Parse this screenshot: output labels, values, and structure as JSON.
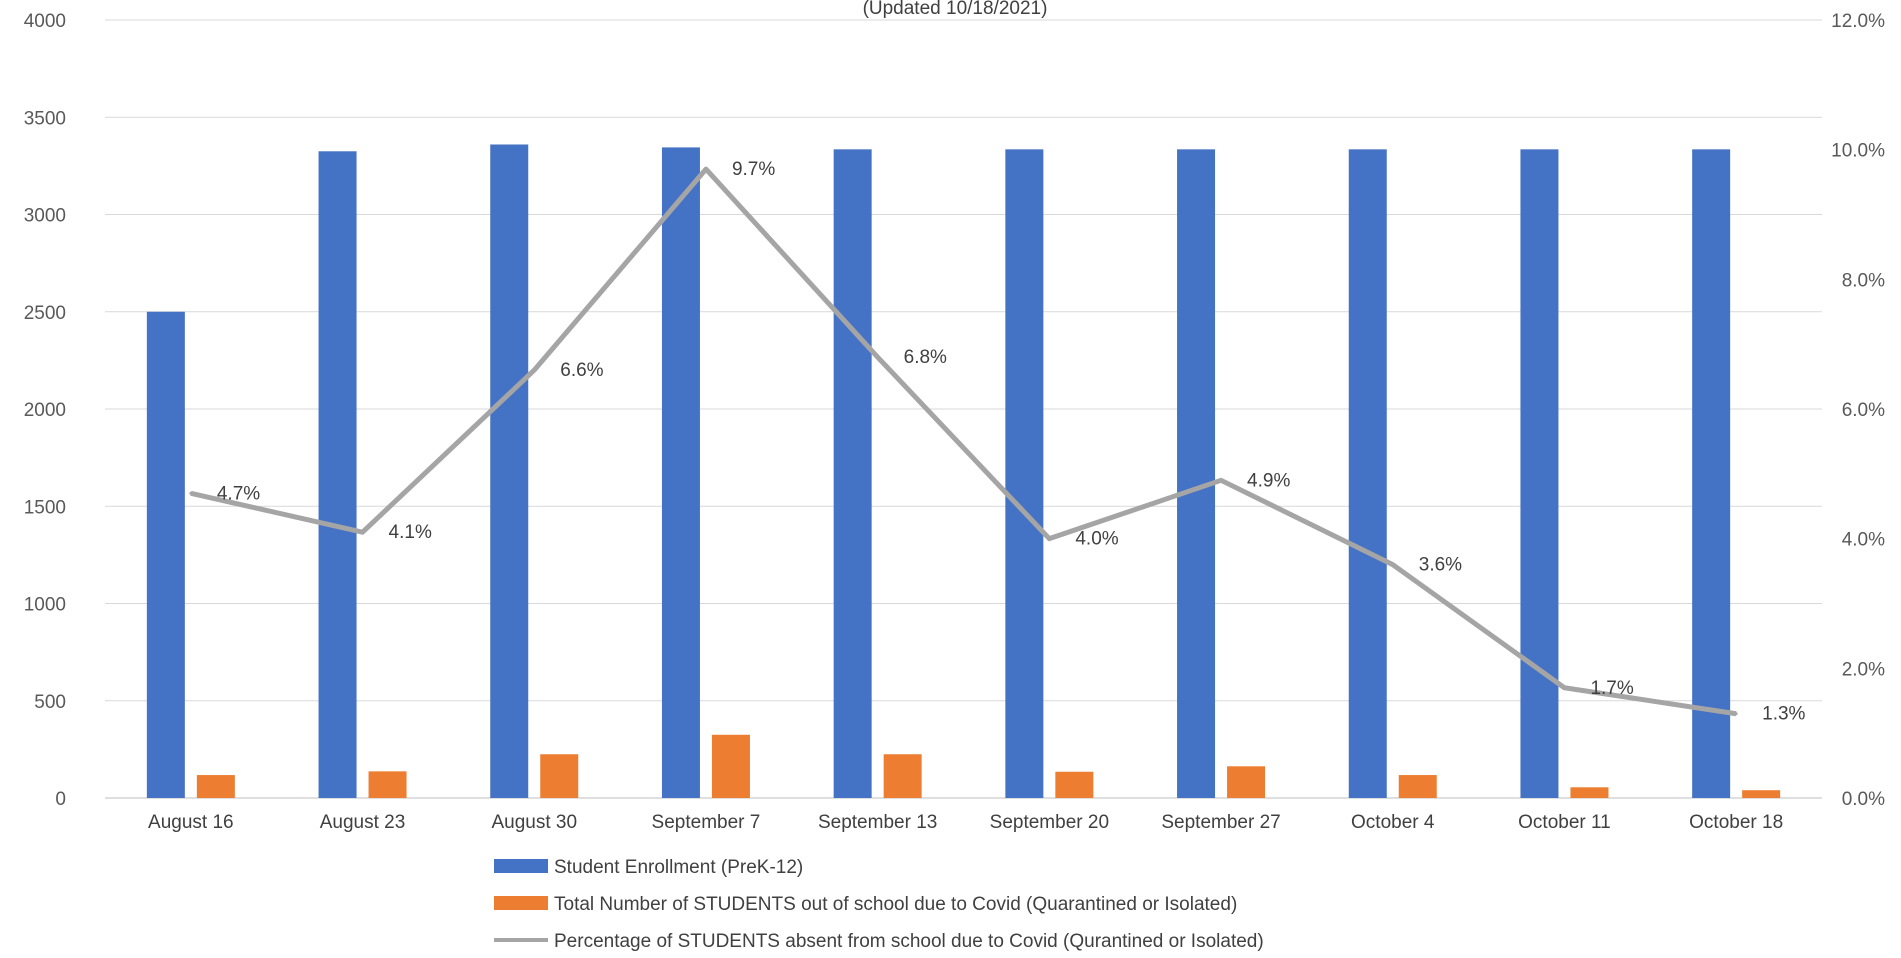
{
  "chart_data": {
    "type": "bar",
    "title": "",
    "subtitle": "(Updated 10/18/2021)",
    "categories": [
      "August 16",
      "August 23",
      "August 30",
      "September 7",
      "September 13",
      "September 20",
      "September 27",
      "October 4",
      "October 11",
      "October 18"
    ],
    "series": [
      {
        "name": "Student Enrollment (PreK-12)",
        "type": "bar",
        "axis": "left",
        "color": "#4472C4",
        "values": [
          2500,
          3325,
          3360,
          3345,
          3335,
          3335,
          3335,
          3335,
          3335,
          3335
        ]
      },
      {
        "name": "Total Number of STUDENTS out of school due to Covid (Quarantined or Isolated)",
        "type": "bar",
        "axis": "left",
        "color": "#ED7D31",
        "values": [
          118,
          137,
          225,
          325,
          225,
          135,
          163,
          118,
          55,
          40
        ]
      },
      {
        "name": "Percentage of STUDENTS absent from school due to Covid (Qurantined or Isolated)",
        "type": "line",
        "axis": "right",
        "color": "#A5A5A5",
        "values": [
          4.7,
          4.1,
          6.6,
          9.7,
          6.8,
          4.0,
          4.9,
          3.6,
          1.7,
          1.3
        ],
        "data_labels": [
          "4.7%",
          "4.1%",
          "6.6%",
          "9.7%",
          "6.8%",
          "4.0%",
          "4.9%",
          "3.6%",
          "1.7%",
          "1.3%"
        ]
      }
    ],
    "y_left": {
      "ylim": [
        0,
        4000
      ],
      "ticks": [
        0,
        500,
        1000,
        1500,
        2000,
        2500,
        3000,
        3500,
        4000
      ],
      "tick_labels": [
        "0",
        "500",
        "1000",
        "1500",
        "2000",
        "2500",
        "3000",
        "3500",
        "4000"
      ]
    },
    "y_right": {
      "ylim": [
        0,
        12
      ],
      "ticks": [
        0,
        2,
        4,
        6,
        8,
        10,
        12
      ],
      "tick_labels": [
        "0.0%",
        "2.0%",
        "4.0%",
        "6.0%",
        "8.0%",
        "10.0%",
        "12.0%"
      ]
    },
    "grid": "horizontal",
    "legend_position": "bottom"
  }
}
